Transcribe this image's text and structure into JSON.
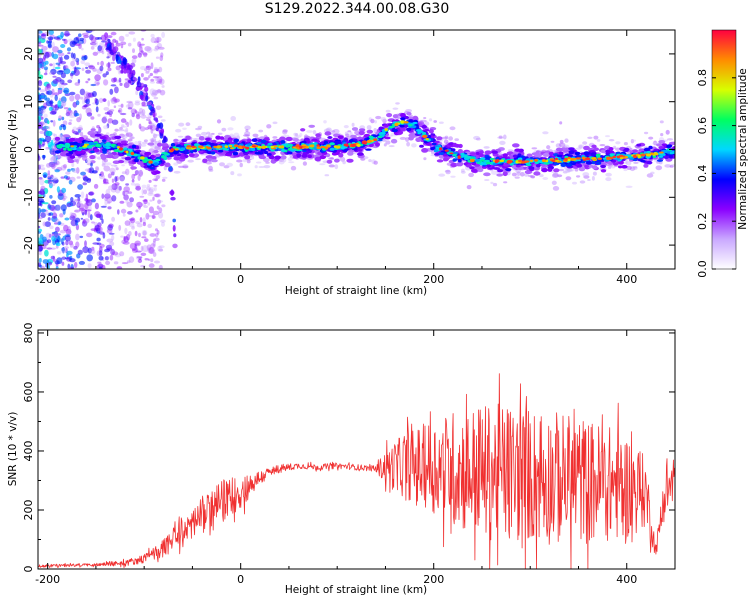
{
  "title": "S129.2022.344.00.08.G30",
  "chart_data": [
    {
      "type": "heatmap",
      "xlabel": "Height of straight line (km)",
      "ylabel": "Frequency (Hz)",
      "xlim": [
        -210,
        450
      ],
      "ylim": [
        -25,
        25
      ],
      "xticks": [
        -200,
        0,
        200,
        400
      ],
      "yticks": [
        -20,
        -10,
        0,
        10,
        20
      ],
      "colorbar": {
        "label": "Normalized spectral amplitude",
        "range": [
          0,
          1
        ],
        "ticks": [
          0.0,
          0.2,
          0.4,
          0.6,
          0.8
        ],
        "tick_labels": [
          "0.0",
          "0.2",
          "0.4",
          "0.6",
          "0.8"
        ],
        "colormap": [
          "#ffffff",
          "#c9a8ff",
          "#8a00ff",
          "#0000ff",
          "#00d8ff",
          "#00ff60",
          "#d8ff00",
          "#ff8c00",
          "#ff0040"
        ]
      },
      "ridge": {
        "x": [
          -170,
          -150,
          -130,
          -110,
          -100,
          -90,
          -80,
          -70,
          -60,
          -40,
          -20,
          0,
          50,
          100,
          120,
          140,
          150,
          170,
          180,
          190,
          200,
          220,
          250,
          300,
          350,
          400,
          450
        ],
        "y": [
          0.5,
          1.0,
          0.5,
          -1.0,
          -2.0,
          -3.0,
          -1.5,
          0.0,
          0.3,
          0.5,
          0.5,
          0.5,
          0.5,
          0.7,
          1.0,
          2.0,
          4.0,
          6.0,
          5.0,
          3.0,
          1.0,
          -1.0,
          -2.5,
          -2.5,
          -2.0,
          -1.5,
          -0.5
        ]
      },
      "branch": {
        "x": [
          -140,
          -120,
          -105,
          -95,
          -85,
          -75,
          -70,
          -68
        ],
        "y": [
          23,
          17,
          13,
          10,
          5,
          0,
          -10,
          -20
        ]
      }
    },
    {
      "type": "line",
      "xlabel": "Height of straight line (km)",
      "ylabel": "SNR (10 * v/v)",
      "xlim": [
        -210,
        450
      ],
      "ylim": [
        0,
        810
      ],
      "xticks": [
        -200,
        0,
        200,
        400
      ],
      "yticks": [
        0,
        200,
        400,
        600,
        800
      ],
      "color": "#f03030",
      "series": [
        {
          "x": [
            -210,
            -150,
            -120,
            -100,
            -80,
            -60,
            -40,
            -20,
            0,
            20,
            40,
            60,
            80,
            100,
            120,
            140,
            150,
            170,
            200,
            220,
            250,
            280,
            300,
            320,
            350,
            380,
            400,
            420,
            430,
            440,
            450
          ],
          "mean": [
            10,
            15,
            20,
            35,
            70,
            130,
            180,
            230,
            260,
            310,
            340,
            350,
            345,
            350,
            345,
            340,
            345,
            350,
            350,
            340,
            330,
            320,
            320,
            310,
            300,
            290,
            280,
            260,
            60,
            260,
            300
          ],
          "spread": [
            5,
            5,
            10,
            15,
            30,
            50,
            60,
            70,
            60,
            25,
            15,
            10,
            10,
            10,
            10,
            10,
            60,
            110,
            160,
            200,
            230,
            240,
            230,
            230,
            220,
            200,
            180,
            120,
            20,
            80,
            100
          ]
        }
      ]
    }
  ]
}
